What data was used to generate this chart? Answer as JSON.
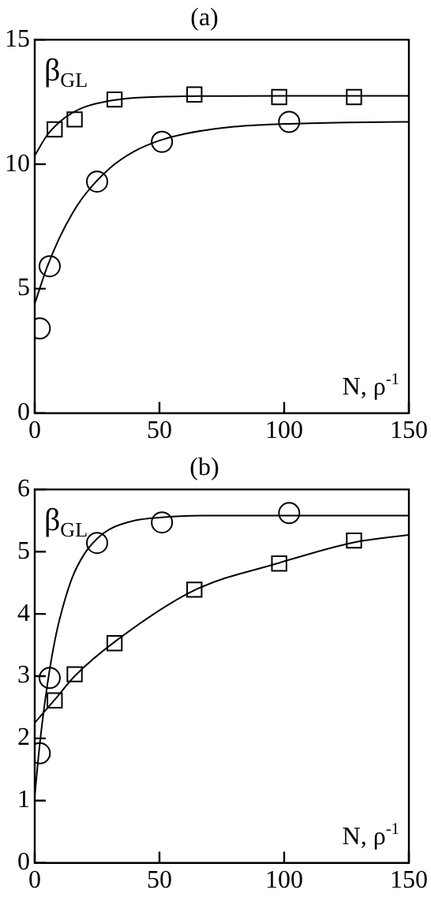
{
  "chart_data": [
    {
      "type": "scatter",
      "title": "(a)",
      "xlabel": "N, ρ$^{-1}$",
      "ylabel": "β$_{GL}$",
      "xlim": [
        0,
        150
      ],
      "xticks": [
        0,
        50,
        100,
        150
      ],
      "ylim": [
        0,
        15
      ],
      "yticks": [
        0,
        5,
        10,
        15
      ],
      "series": [
        {
          "type": "scatter",
          "marker": "square",
          "color": "#000000",
          "x": [
            8,
            16,
            32,
            64,
            98,
            128
          ],
          "values": [
            11.4,
            11.8,
            12.6,
            12.8,
            12.7,
            12.7
          ]
        },
        {
          "type": "scatter",
          "marker": "circle",
          "color": "#000000",
          "x": [
            2,
            6,
            25,
            51,
            102
          ],
          "values": [
            3.4,
            5.9,
            9.3,
            10.9,
            11.7
          ]
        },
        {
          "type": "line",
          "marker": "none",
          "color": "#000000",
          "x": [
            0,
            5,
            10,
            15,
            20,
            30,
            40,
            60,
            100,
            150
          ],
          "values": [
            10.35,
            11.17,
            11.7,
            12.06,
            12.3,
            12.55,
            12.67,
            12.73,
            12.75,
            12.75
          ]
        },
        {
          "type": "line",
          "marker": "none",
          "color": "#000000",
          "x": [
            0,
            5,
            10,
            15,
            20,
            30,
            40,
            50,
            60,
            80,
            100,
            125,
            150
          ],
          "values": [
            4.4,
            5.88,
            7.06,
            8.01,
            8.76,
            9.83,
            10.52,
            10.95,
            11.22,
            11.51,
            11.62,
            11.68,
            11.7
          ]
        }
      ]
    },
    {
      "type": "scatter",
      "title": "(b)",
      "xlabel": "N, ρ$^{-1}$",
      "ylabel": "β$_{GL}$",
      "xlim": [
        0,
        150
      ],
      "xticks": [
        0,
        50,
        100,
        150
      ],
      "ylim": [
        0,
        6
      ],
      "yticks": [
        0,
        1,
        2,
        3,
        4,
        5,
        6
      ],
      "series": [
        {
          "type": "scatter",
          "marker": "circle",
          "color": "#000000",
          "x": [
            2,
            6,
            25,
            51,
            102
          ],
          "values": [
            1.76,
            2.97,
            5.14,
            5.47,
            5.62
          ]
        },
        {
          "type": "scatter",
          "marker": "square",
          "color": "#000000",
          "x": [
            8,
            16,
            32,
            64,
            98,
            128
          ],
          "values": [
            2.61,
            3.03,
            3.53,
            4.39,
            4.81,
            5.18
          ]
        },
        {
          "type": "line",
          "marker": "none",
          "color": "#000000",
          "x": [
            0,
            2,
            4,
            6,
            8,
            10,
            15,
            20,
            25,
            30,
            40,
            50,
            70,
            150
          ],
          "values": [
            1.08,
            1.9,
            2.56,
            3.11,
            3.56,
            3.92,
            4.58,
            4.97,
            5.21,
            5.36,
            5.5,
            5.55,
            5.58,
            5.58
          ]
        },
        {
          "type": "line",
          "marker": "none",
          "color": "#000000",
          "x": [
            0,
            8,
            16,
            32,
            64,
            98,
            128,
            150
          ],
          "values": [
            2.25,
            2.62,
            3.0,
            3.55,
            4.38,
            4.82,
            5.15,
            5.27
          ]
        }
      ]
    }
  ]
}
